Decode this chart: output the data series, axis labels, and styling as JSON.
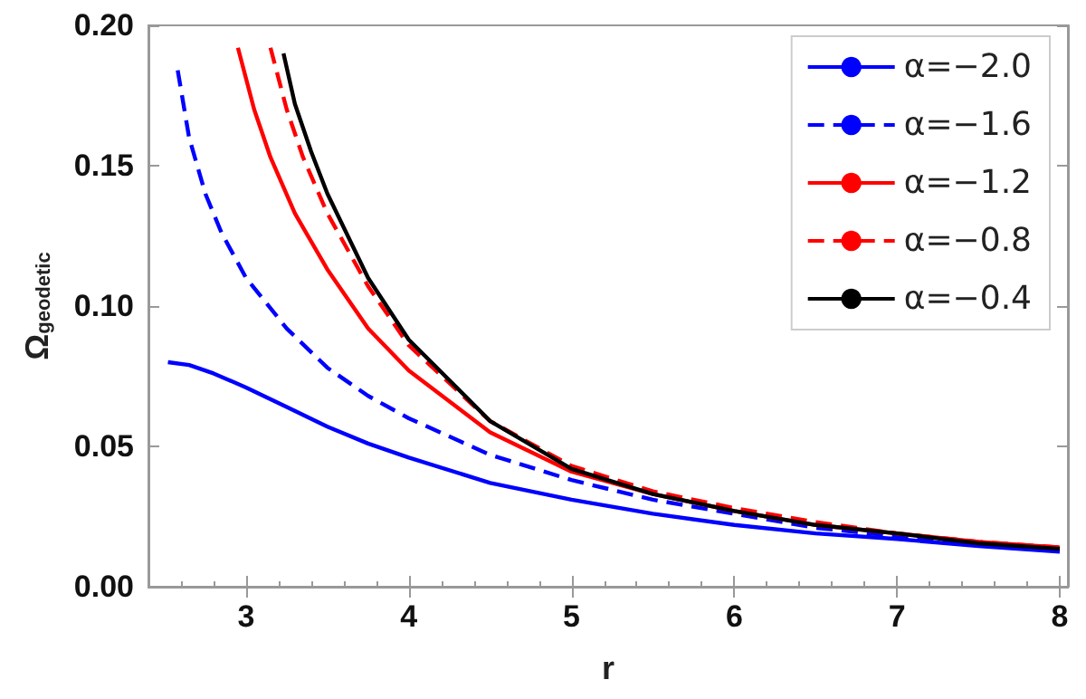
{
  "chart_data": {
    "type": "line",
    "xlabel": "r",
    "ylabel": "Ω$_{geodetic}$",
    "xlim": [
      2.4,
      8.05
    ],
    "ylim": [
      0,
      0.2
    ],
    "xticks": [
      3,
      4,
      5,
      6,
      7,
      8
    ],
    "yticks": [
      {
        "value": 0,
        "label": "0.00"
      },
      {
        "value": 0.05,
        "label": "0.05"
      },
      {
        "value": 0.1,
        "label": "0.10"
      },
      {
        "value": 0.15,
        "label": "0.15"
      },
      {
        "value": 0.2,
        "label": "0.20"
      }
    ],
    "grid": false,
    "legend": "top right",
    "marker": "none",
    "series": [
      {
        "name": "α=−2.0",
        "color": "#0000ff",
        "line_style": "solid",
        "x": [
          2.52,
          2.65,
          2.8,
          3,
          3.25,
          3.5,
          3.75,
          4,
          4.5,
          5,
          5.5,
          6,
          6.5,
          7,
          7.5,
          8
        ],
        "values": [
          0.08,
          0.079,
          0.076,
          0.071,
          0.064,
          0.057,
          0.051,
          0.046,
          0.037,
          0.031,
          0.026,
          0.022,
          0.019,
          0.017,
          0.0145,
          0.0125
        ]
      },
      {
        "name": "α=−1.6",
        "color": "#0000ff",
        "line_style": "dashed",
        "x": [
          2.58,
          2.65,
          2.75,
          2.85,
          3,
          3.25,
          3.5,
          3.75,
          4,
          4.5,
          5,
          5.5,
          6,
          6.5,
          7,
          7.5,
          8
        ],
        "values": [
          0.184,
          0.16,
          0.14,
          0.126,
          0.11,
          0.092,
          0.078,
          0.068,
          0.06,
          0.047,
          0.038,
          0.031,
          0.026,
          0.021,
          0.018,
          0.0155,
          0.013
        ]
      },
      {
        "name": "α=−1.2",
        "color": "#ff0000",
        "line_style": "solid",
        "x": [
          2.95,
          3.05,
          3.15,
          3.3,
          3.5,
          3.75,
          4,
          4.5,
          5,
          5.5,
          6,
          6.5,
          7,
          7.5,
          8
        ],
        "values": [
          0.192,
          0.17,
          0.153,
          0.133,
          0.113,
          0.092,
          0.077,
          0.055,
          0.041,
          0.033,
          0.027,
          0.022,
          0.019,
          0.016,
          0.014
        ]
      },
      {
        "name": "α=−0.8",
        "color": "#ff0000",
        "line_style": "dashed",
        "x": [
          3.15,
          3.25,
          3.35,
          3.5,
          3.75,
          4,
          4.5,
          5,
          5.5,
          6,
          6.5,
          7,
          7.5,
          8
        ],
        "values": [
          0.192,
          0.17,
          0.153,
          0.133,
          0.107,
          0.086,
          0.059,
          0.043,
          0.034,
          0.028,
          0.023,
          0.019,
          0.016,
          0.014
        ]
      },
      {
        "name": "α=−0.4",
        "color": "#000000",
        "line_style": "solid",
        "x": [
          3.23,
          3.3,
          3.4,
          3.5,
          3.75,
          4,
          4.5,
          5,
          5.5,
          6,
          6.5,
          7,
          7.5,
          8
        ],
        "values": [
          0.19,
          0.172,
          0.155,
          0.14,
          0.11,
          0.088,
          0.059,
          0.042,
          0.033,
          0.027,
          0.022,
          0.019,
          0.0155,
          0.0135
        ]
      }
    ]
  }
}
